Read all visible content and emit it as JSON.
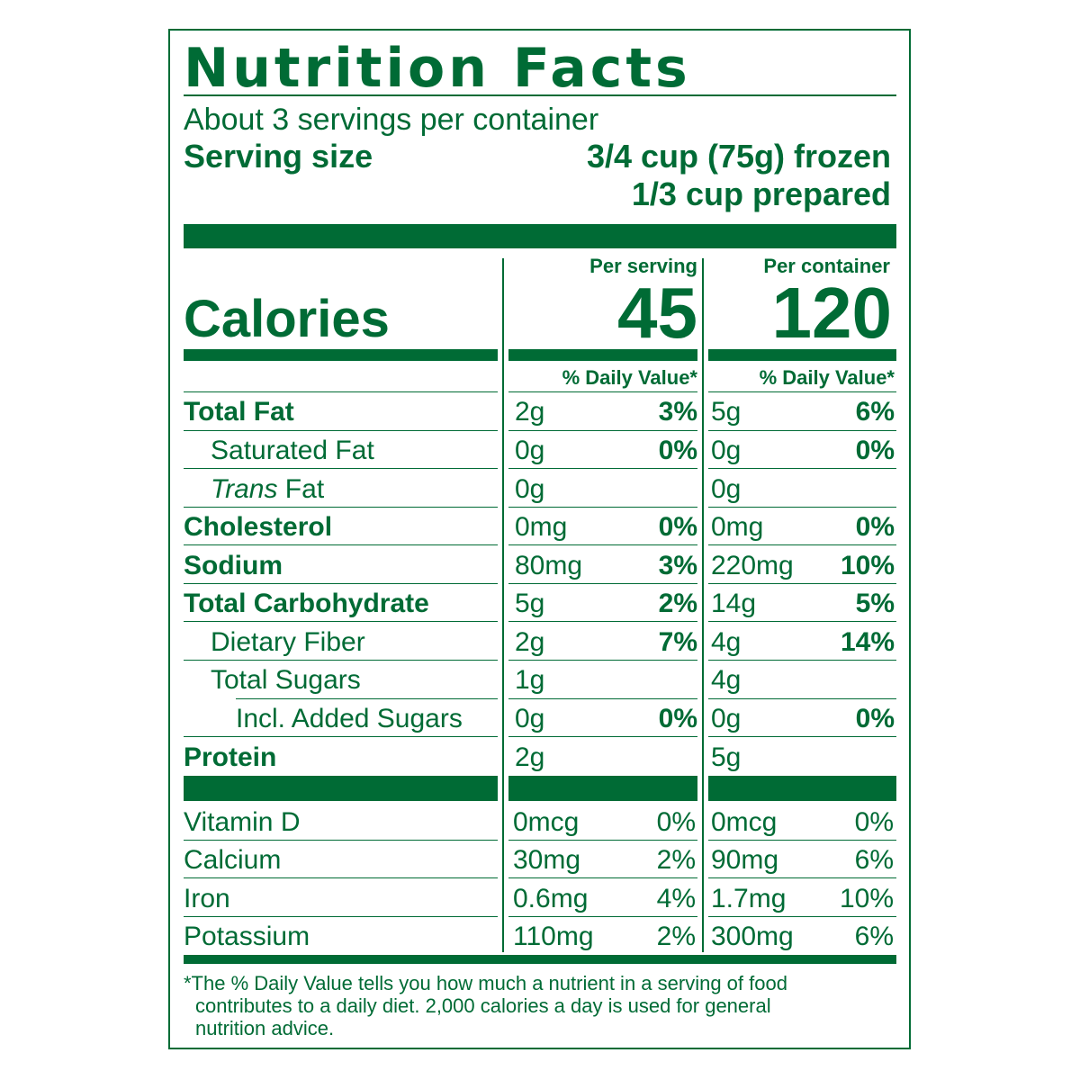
{
  "title": "Nutrition Facts",
  "servings_per_container": "About 3 servings per container",
  "serving_size_label": "Serving size",
  "serving_size_frozen": "3/4 cup (75g) frozen",
  "serving_size_prepared": "1/3 cup prepared",
  "column_headers": {
    "per_serving": "Per serving",
    "per_container": "Per container"
  },
  "calories_label": "Calories",
  "calories": {
    "per_serving": "45",
    "per_container": "120"
  },
  "daily_value_header": "% Daily Value*",
  "nutrients": [
    {
      "label": "Total Fat",
      "serving_amount": "2g",
      "serving_dv": "3%",
      "container_amount": "5g",
      "container_dv": "6%"
    },
    {
      "label": "Saturated Fat",
      "serving_amount": "0g",
      "serving_dv": "0%",
      "container_amount": "0g",
      "container_dv": "0%"
    },
    {
      "label_italic": "Trans",
      "label_rest": " Fat",
      "serving_amount": "0g",
      "serving_dv": "",
      "container_amount": "0g",
      "container_dv": ""
    },
    {
      "label": "Cholesterol",
      "serving_amount": "0mg",
      "serving_dv": "0%",
      "container_amount": "0mg",
      "container_dv": "0%"
    },
    {
      "label": "Sodium",
      "serving_amount": "80mg",
      "serving_dv": "3%",
      "container_amount": "220mg",
      "container_dv": "10%"
    },
    {
      "label": "Total Carbohydrate",
      "serving_amount": "5g",
      "serving_dv": "2%",
      "container_amount": "14g",
      "container_dv": "5%"
    },
    {
      "label": "Dietary Fiber",
      "serving_amount": "2g",
      "serving_dv": "7%",
      "container_amount": "4g",
      "container_dv": "14%"
    },
    {
      "label": "Total Sugars",
      "serving_amount": "1g",
      "serving_dv": "",
      "container_amount": "4g",
      "container_dv": ""
    },
    {
      "label": "Incl. Added Sugars",
      "serving_amount": "0g",
      "serving_dv": "0%",
      "container_amount": "0g",
      "container_dv": "0%"
    },
    {
      "label": "Protein",
      "serving_amount": "2g",
      "serving_dv": "",
      "container_amount": "5g",
      "container_dv": ""
    }
  ],
  "vitamins": [
    {
      "label": "Vitamin D",
      "serving_amount": "0mcg",
      "serving_dv": "0%",
      "container_amount": "0mcg",
      "container_dv": "0%"
    },
    {
      "label": "Calcium",
      "serving_amount": "30mg",
      "serving_dv": "2%",
      "container_amount": "90mg",
      "container_dv": "6%"
    },
    {
      "label": "Iron",
      "serving_amount": "0.6mg",
      "serving_dv": "4%",
      "container_amount": "1.7mg",
      "container_dv": "10%"
    },
    {
      "label": "Potassium",
      "serving_amount": "110mg",
      "serving_dv": "2%",
      "container_amount": "300mg",
      "container_dv": "6%"
    }
  ],
  "footnote_line1": "*The % Daily Value tells you how much a nutrient in a serving of food",
  "footnote_line2": "contributes to a daily diet. 2,000 calories a day is used for general",
  "footnote_line3": "nutrition advice.",
  "colors": {
    "ink": "#006b35",
    "background": "#ffffff"
  }
}
